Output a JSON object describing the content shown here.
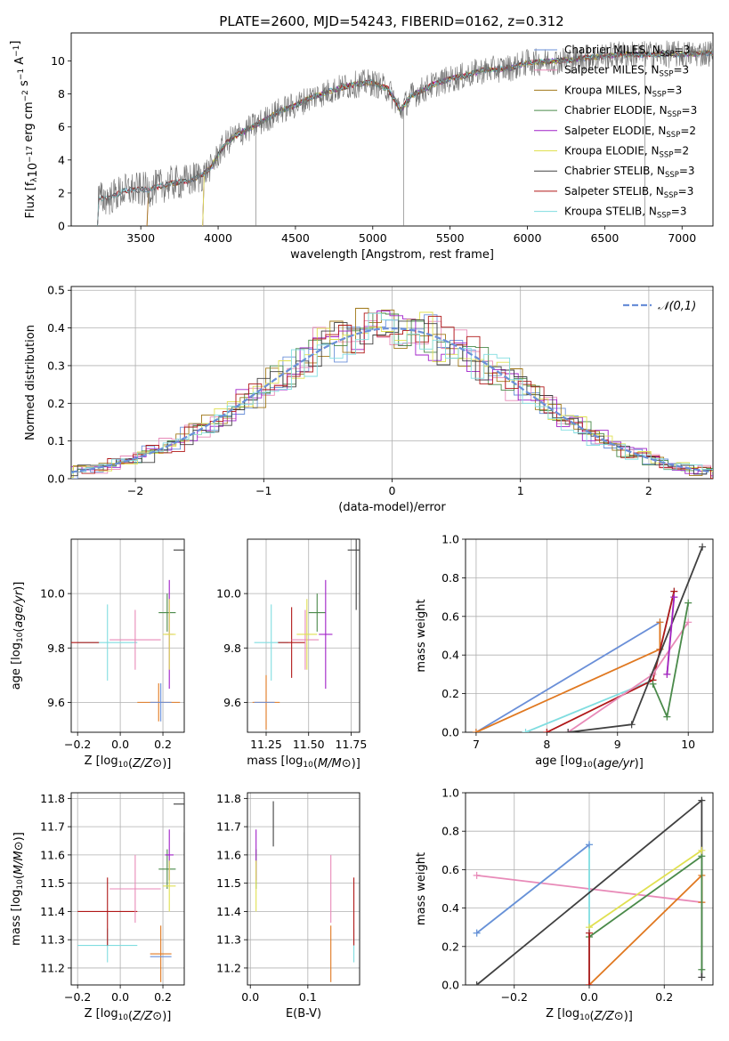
{
  "title": "PLATE=2600, MJD=54243, FIBERID=0162, z=0.312",
  "colors": {
    "chabrier_miles": "#6a8fd8",
    "salpeter_miles": "#e88ab8",
    "kroupa_miles": "#a07818",
    "chabrier_elodie": "#4a8a4a",
    "salpeter_elodie": "#a020c8",
    "kroupa_elodie": "#e0e050",
    "chabrier_stelib": "#404040",
    "salpeter_stelib": "#b01818",
    "kroupa_stelib": "#80dde0",
    "orange": "#e07820",
    "data": "#707070"
  },
  "chart_data": [
    {
      "id": "spectrum",
      "type": "line",
      "xlabel": "wavelength [Angstrom, rest frame]",
      "ylabel": "Flux [f_λ10^-17 erg cm^-2 s^-1 A^-1]",
      "xlim": [
        3050,
        7200
      ],
      "ylim": [
        0,
        11.7
      ],
      "xticks": [
        3500,
        4000,
        4500,
        5000,
        5500,
        6000,
        6500,
        7000
      ],
      "yticks": [
        0,
        2,
        4,
        6,
        8,
        10
      ],
      "grid": false,
      "legend_position": "right",
      "legend": [
        {
          "label": "Chabrier MILES, N",
          "sub": "SSP",
          "suffix": "=3",
          "color": "chabrier_miles"
        },
        {
          "label": "Salpeter MILES, N",
          "sub": "SSP",
          "suffix": "=3",
          "color": "salpeter_miles"
        },
        {
          "label": "Kroupa MILES, N",
          "sub": "SSP",
          "suffix": "=3",
          "color": "kroupa_miles"
        },
        {
          "label": "Chabrier ELODIE, N",
          "sub": "SSP",
          "suffix": "=3",
          "color": "chabrier_elodie"
        },
        {
          "label": "Salpeter ELODIE, N",
          "sub": "SSP",
          "suffix": "=2",
          "color": "salpeter_elodie"
        },
        {
          "label": "Kroupa ELODIE, N",
          "sub": "SSP",
          "suffix": "=2",
          "color": "kroupa_elodie"
        },
        {
          "label": "Chabrier STELIB, N",
          "sub": "SSP",
          "suffix": "=3",
          "color": "chabrier_stelib"
        },
        {
          "label": "Salpeter STELIB, N",
          "sub": "SSP",
          "suffix": "=3",
          "color": "salpeter_stelib"
        },
        {
          "label": "Kroupa STELIB, N",
          "sub": "SSP",
          "suffix": "=3",
          "color": "kroupa_stelib"
        }
      ],
      "continuum": [
        [
          3220,
          0
        ],
        [
          3225,
          1.65
        ],
        [
          3300,
          1.7
        ],
        [
          3380,
          2.1
        ],
        [
          3450,
          2.2
        ],
        [
          3550,
          2.2
        ],
        [
          3620,
          2.4
        ],
        [
          3700,
          2.6
        ],
        [
          3800,
          2.7
        ],
        [
          3880,
          3.0
        ],
        [
          3950,
          3.5
        ],
        [
          4000,
          4.3
        ],
        [
          4050,
          5.0
        ],
        [
          4100,
          5.4
        ],
        [
          4200,
          5.9
        ],
        [
          4300,
          6.4
        ],
        [
          4400,
          7.0
        ],
        [
          4500,
          7.3
        ],
        [
          4600,
          7.8
        ],
        [
          4700,
          8.1
        ],
        [
          4800,
          8.4
        ],
        [
          4900,
          8.6
        ],
        [
          4990,
          8.7
        ],
        [
          5100,
          8.3
        ],
        [
          5180,
          7.0
        ],
        [
          5250,
          7.9
        ],
        [
          5400,
          8.6
        ],
        [
          5500,
          8.9
        ],
        [
          5600,
          9.1
        ],
        [
          5700,
          9.4
        ],
        [
          5800,
          9.5
        ],
        [
          5900,
          9.6
        ],
        [
          6000,
          9.9
        ],
        [
          6200,
          10.0
        ],
        [
          6400,
          10.2
        ],
        [
          6600,
          10.4
        ],
        [
          6800,
          10.4
        ],
        [
          7000,
          10.4
        ],
        [
          7200,
          10.5
        ]
      ]
    },
    {
      "id": "residuals",
      "type": "histogram",
      "xlabel": "(data-model)/error",
      "ylabel": "Normed distribution",
      "xlim": [
        -2.5,
        2.5
      ],
      "ylim": [
        0,
        0.51
      ],
      "xticks": [
        -2,
        -1,
        0,
        1,
        2
      ],
      "yticks": [
        0.0,
        0.1,
        0.2,
        0.3,
        0.4,
        0.5
      ],
      "grid": true,
      "legend_position": "top-right",
      "legend": "𝒩(0,1)",
      "gaussian": {
        "mu": 0,
        "sigma": 1
      }
    },
    {
      "id": "age-vs-Z",
      "type": "errorbar",
      "xlabel": "Z [log10(Z/Z⊙)]",
      "ylabel": "age [log10(age/yr)]",
      "xlim": [
        -0.23,
        0.3
      ],
      "ylim": [
        9.49,
        10.2
      ],
      "xticks": [
        -0.2,
        0.0,
        0.2
      ],
      "yticks": [
        9.6,
        9.8,
        10.0
      ],
      "grid": true,
      "points": [
        {
          "c": "kroupa_stelib",
          "x": -0.06,
          "xerr": 0.14,
          "y": 9.82,
          "yerr": 0.14
        },
        {
          "c": "salpeter_stelib",
          "x": -0.2,
          "xerr": 0.1,
          "y": 9.82,
          "yerr": 0.0
        },
        {
          "c": "salpeter_miles",
          "x": 0.07,
          "xerr": 0.12,
          "y": 9.83,
          "yerr": 0.11
        },
        {
          "c": "orange",
          "x": 0.18,
          "xerr": 0.1,
          "y": 9.6,
          "yerr": 0.07
        },
        {
          "c": "chabrier_miles",
          "x": 0.19,
          "xerr": 0.05,
          "y": 9.6,
          "yerr": 0.07
        },
        {
          "c": "chabrier_elodie",
          "x": 0.22,
          "xerr": 0.04,
          "y": 9.93,
          "yerr": 0.07
        },
        {
          "c": "salpeter_elodie",
          "x": 0.23,
          "xerr": 0.02,
          "y": 9.85,
          "yerr": 0.2
        },
        {
          "c": "kroupa_elodie",
          "x": 0.23,
          "xerr": 0.03,
          "y": 9.85,
          "yerr": 0.13
        },
        {
          "c": "chabrier_stelib",
          "x": 0.3,
          "xerr": 0.05,
          "y": 10.16,
          "yerr": 0.22
        }
      ]
    },
    {
      "id": "age-vs-mass",
      "type": "errorbar",
      "xlabel": "mass [log10(M/M⊙)]",
      "ylabel": "",
      "xlim": [
        11.14,
        11.8
      ],
      "ylim": [
        9.49,
        10.2
      ],
      "xticks": [
        11.25,
        11.5,
        11.75
      ],
      "yticks": [
        9.6,
        9.8,
        10.0
      ],
      "grid": true,
      "points": [
        {
          "c": "kroupa_stelib",
          "x": 11.28,
          "xerr": 0.1,
          "y": 9.82,
          "yerr": 0.14
        },
        {
          "c": "salpeter_stelib",
          "x": 11.4,
          "xerr": 0.08,
          "y": 9.82,
          "yerr": 0.13
        },
        {
          "c": "salpeter_miles",
          "x": 11.48,
          "xerr": 0.08,
          "y": 9.83,
          "yerr": 0.11
        },
        {
          "c": "orange",
          "x": 11.25,
          "xerr": 0.08,
          "y": 9.6,
          "yerr": 0.1
        },
        {
          "c": "chabrier_miles",
          "x": 11.24,
          "xerr": 0.06,
          "y": 9.6,
          "yerr": 0.0
        },
        {
          "c": "chabrier_elodie",
          "x": 11.55,
          "xerr": 0.05,
          "y": 9.93,
          "yerr": 0.07
        },
        {
          "c": "salpeter_elodie",
          "x": 11.6,
          "xerr": 0.04,
          "y": 9.85,
          "yerr": 0.2
        },
        {
          "c": "kroupa_elodie",
          "x": 11.49,
          "xerr": 0.06,
          "y": 9.85,
          "yerr": 0.13
        },
        {
          "c": "chabrier_stelib",
          "x": 11.78,
          "xerr": 0.05,
          "y": 10.16,
          "yerr": 0.22
        }
      ]
    },
    {
      "id": "massweight-vs-age",
      "type": "line",
      "xlabel": "age [log10(age/yr)]",
      "ylabel": "mass weight",
      "xlim": [
        6.85,
        10.35
      ],
      "ylim": [
        0,
        1.0
      ],
      "xticks": [
        7,
        8,
        9,
        10
      ],
      "yticks": [
        0.0,
        0.2,
        0.4,
        0.6,
        0.8,
        1.0
      ],
      "grid": true,
      "series": [
        {
          "c": "chabrier_miles",
          "pts": [
            [
              7.0,
              0.0
            ],
            [
              9.6,
              0.57
            ],
            [
              9.6,
              0.43
            ]
          ]
        },
        {
          "c": "orange",
          "pts": [
            [
              7.0,
              0.0
            ],
            [
              9.6,
              0.43
            ],
            [
              9.6,
              0.57
            ]
          ]
        },
        {
          "c": "kroupa_stelib",
          "pts": [
            [
              7.7,
              0.0
            ],
            [
              9.5,
              0.27
            ],
            [
              9.8,
              0.73
            ]
          ]
        },
        {
          "c": "salpeter_stelib",
          "pts": [
            [
              8.0,
              0.0
            ],
            [
              9.5,
              0.27
            ],
            [
              9.8,
              0.73
            ]
          ]
        },
        {
          "c": "salpeter_miles",
          "pts": [
            [
              8.3,
              0.0
            ],
            [
              9.5,
              0.3
            ],
            [
              10.0,
              0.57
            ]
          ]
        },
        {
          "c": "chabrier_stelib",
          "pts": [
            [
              8.3,
              0.0
            ],
            [
              9.2,
              0.04
            ],
            [
              10.2,
              0.96
            ]
          ]
        },
        {
          "c": "chabrier_elodie",
          "pts": [
            [
              9.5,
              0.25
            ],
            [
              9.7,
              0.08
            ],
            [
              10.0,
              0.67
            ]
          ]
        },
        {
          "c": "kroupa_elodie",
          "pts": [
            [
              9.7,
              0.3
            ],
            [
              9.8,
              0.7
            ]
          ]
        },
        {
          "c": "salpeter_elodie",
          "pts": [
            [
              9.7,
              0.3
            ],
            [
              9.8,
              0.7
            ]
          ]
        }
      ]
    },
    {
      "id": "mass-vs-Z",
      "type": "errorbar",
      "xlabel": "Z [log10(Z/Z⊙)]",
      "ylabel": "mass [log10(M/M⊙)]",
      "xlim": [
        -0.23,
        0.3
      ],
      "ylim": [
        11.14,
        11.82
      ],
      "xticks": [
        -0.2,
        0.0,
        0.2
      ],
      "yticks": [
        11.2,
        11.3,
        11.4,
        11.5,
        11.6,
        11.7,
        11.8
      ],
      "grid": true,
      "points": [
        {
          "c": "kroupa_stelib",
          "x": -0.06,
          "xerr": 0.14,
          "y": 11.28,
          "yerr": 0.06
        },
        {
          "c": "salpeter_stelib",
          "x": -0.06,
          "xerr": 0.14,
          "y": 11.4,
          "yerr": 0.12
        },
        {
          "c": "salpeter_miles",
          "x": 0.07,
          "xerr": 0.12,
          "y": 11.48,
          "yerr": 0.12
        },
        {
          "c": "orange",
          "x": 0.19,
          "xerr": 0.05,
          "y": 11.25,
          "yerr": 0.1
        },
        {
          "c": "chabrier_miles",
          "x": 0.19,
          "xerr": 0.05,
          "y": 11.24,
          "yerr": 0.0
        },
        {
          "c": "chabrier_elodie",
          "x": 0.22,
          "xerr": 0.04,
          "y": 11.55,
          "yerr": 0.07
        },
        {
          "c": "salpeter_elodie",
          "x": 0.23,
          "xerr": 0.02,
          "y": 11.6,
          "yerr": 0.09
        },
        {
          "c": "kroupa_elodie",
          "x": 0.23,
          "xerr": 0.03,
          "y": 11.49,
          "yerr": 0.09
        },
        {
          "c": "chabrier_stelib",
          "x": 0.3,
          "xerr": 0.05,
          "y": 11.78,
          "yerr": 0.1
        }
      ]
    },
    {
      "id": "mass-vs-EBV",
      "type": "errorbar",
      "xlabel": "E(B-V)",
      "ylabel": "",
      "xlim": [
        -0.005,
        0.19
      ],
      "ylim": [
        11.14,
        11.82
      ],
      "xticks": [
        0.0,
        0.1
      ],
      "yticks": [
        11.2,
        11.3,
        11.4,
        11.5,
        11.6,
        11.7,
        11.8
      ],
      "grid": true,
      "points": [
        {
          "c": "kroupa_stelib",
          "x": 0.18,
          "xerr": 0.0,
          "y": 11.28,
          "yerr": 0.06
        },
        {
          "c": "salpeter_stelib",
          "x": 0.18,
          "xerr": 0.0,
          "y": 11.4,
          "yerr": 0.12
        },
        {
          "c": "salpeter_miles",
          "x": 0.14,
          "xerr": 0.0,
          "y": 11.48,
          "yerr": 0.12
        },
        {
          "c": "orange",
          "x": 0.14,
          "xerr": 0.0,
          "y": 11.25,
          "yerr": 0.1
        },
        {
          "c": "chabrier_elodie",
          "x": 0.01,
          "xerr": 0.0,
          "y": 11.55,
          "yerr": 0.07
        },
        {
          "c": "salpeter_elodie",
          "x": 0.01,
          "xerr": 0.0,
          "y": 11.6,
          "yerr": 0.09
        },
        {
          "c": "kroupa_elodie",
          "x": 0.01,
          "xerr": 0.0,
          "y": 11.49,
          "yerr": 0.09
        },
        {
          "c": "chabrier_stelib",
          "x": 0.04,
          "xerr": 0.0,
          "y": 11.71,
          "yerr": 0.08
        }
      ]
    },
    {
      "id": "massweight-vs-Z",
      "type": "line",
      "xlabel": "Z [log10(Z/Z⊙)]",
      "ylabel": "mass weight",
      "xlim": [
        -0.33,
        0.33
      ],
      "ylim": [
        0,
        1.0
      ],
      "xticks": [
        -0.2,
        0.0,
        0.2
      ],
      "yticks": [
        0.0,
        0.2,
        0.4,
        0.6,
        0.8,
        1.0
      ],
      "grid": true,
      "series": [
        {
          "c": "salpeter_miles",
          "pts": [
            [
              -0.3,
              0.57
            ],
            [
              0.3,
              0.43
            ]
          ]
        },
        {
          "c": "kroupa_stelib",
          "pts": [
            [
              -0.3,
              0.27
            ],
            [
              0.0,
              0.73
            ],
            [
              0.0,
              0.0
            ]
          ]
        },
        {
          "c": "chabrier_miles",
          "pts": [
            [
              -0.3,
              0.27
            ],
            [
              0.0,
              0.73
            ]
          ]
        },
        {
          "c": "chabrier_stelib",
          "pts": [
            [
              -0.3,
              0.0
            ],
            [
              0.3,
              0.96
            ],
            [
              0.3,
              0.04
            ]
          ]
        },
        {
          "c": "orange",
          "pts": [
            [
              0.0,
              0.0
            ],
            [
              0.3,
              0.57
            ],
            [
              0.3,
              0.43
            ]
          ]
        },
        {
          "c": "chabrier_elodie",
          "pts": [
            [
              0.0,
              0.25
            ],
            [
              0.3,
              0.67
            ],
            [
              0.3,
              0.08
            ]
          ]
        },
        {
          "c": "kroupa_elodie",
          "pts": [
            [
              0.0,
              0.3
            ],
            [
              0.3,
              0.7
            ]
          ]
        },
        {
          "c": "salpeter_stelib",
          "pts": [
            [
              0.0,
              0.0
            ],
            [
              0.0,
              0.27
            ]
          ]
        }
      ]
    }
  ]
}
